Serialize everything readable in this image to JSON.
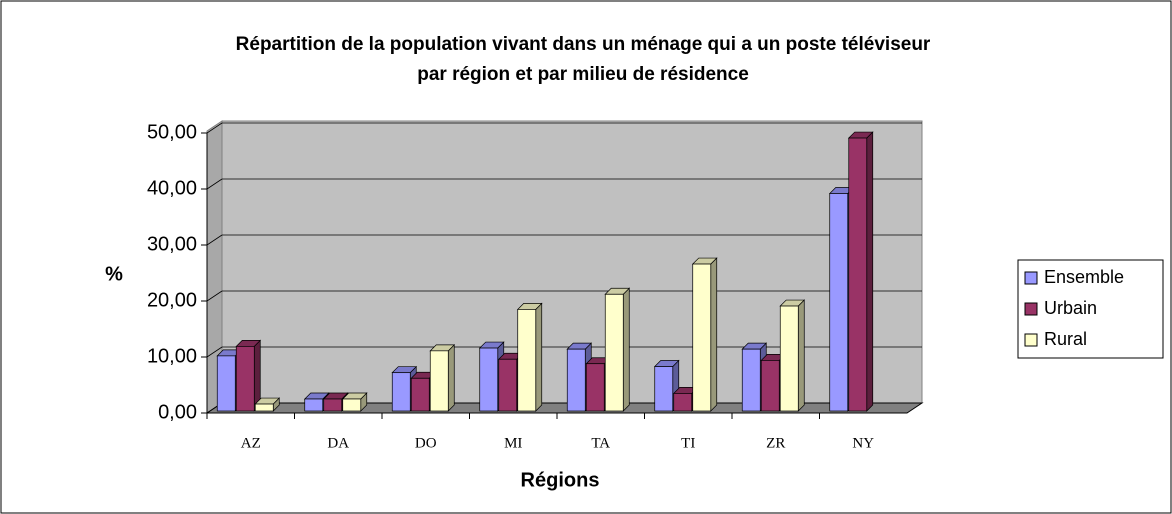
{
  "chart_data": {
    "type": "bar3d",
    "title": [
      "Répartition de la population vivant dans un ménage qui a un poste téléviseur",
      "par région et par milieu de résidence"
    ],
    "y_label": "%",
    "x_label": "Régions",
    "categories": [
      "AZ",
      "DA",
      "DO",
      "MI",
      "TA",
      "TI",
      "ZR",
      "NY"
    ],
    "series": [
      {
        "name": "Ensemble",
        "color": "#9999ff",
        "values": [
          10.2,
          2.5,
          7.2,
          11.6,
          11.4,
          8.3,
          11.4,
          39.2
        ]
      },
      {
        "name": "Urbain",
        "color": "#993366",
        "values": [
          11.9,
          2.5,
          6.2,
          9.6,
          8.8,
          3.5,
          9.4,
          49.1
        ]
      },
      {
        "name": "Rural",
        "color": "#ffffcc",
        "values": [
          1.6,
          2.5,
          11.1,
          18.5,
          21.2,
          26.6,
          19.1,
          null
        ]
      }
    ],
    "ylim": [
      0,
      50
    ],
    "yticks": [
      {
        "value": 0,
        "label": "0,00"
      },
      {
        "value": 10,
        "label": "10,00"
      },
      {
        "value": 20,
        "label": "20,00"
      },
      {
        "value": 30,
        "label": "30,00"
      },
      {
        "value": 40,
        "label": "40,00"
      },
      {
        "value": 50,
        "label": "50,00"
      }
    ],
    "grid": true,
    "legend": "right"
  }
}
